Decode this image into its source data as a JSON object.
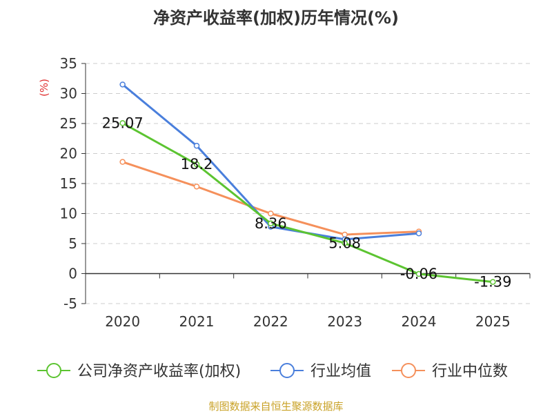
{
  "chart_data": {
    "type": "line",
    "title": "净资产收益率(加权)历年情况(%)",
    "ylabel": "(%)",
    "xlabel": "",
    "ylim": [
      -5,
      35
    ],
    "yticks": [
      -5,
      0,
      5,
      10,
      15,
      20,
      25,
      30,
      35
    ],
    "categories": [
      "2020",
      "2021",
      "2022",
      "2023",
      "2024",
      "2025"
    ],
    "grid": true,
    "legend_position": "bottom",
    "series": [
      {
        "name": "公司净资产收益率(加权)",
        "color": "#5cc431",
        "values": [
          25.07,
          18.2,
          8.36,
          5.08,
          -0.06,
          -1.39
        ],
        "labels": [
          "25.07",
          "18.2",
          "8.36",
          "5.08",
          "-0.06",
          "-1.39"
        ]
      },
      {
        "name": "行业均值",
        "color": "#4a7fdc",
        "values": [
          31.5,
          21.3,
          7.8,
          5.7,
          6.7,
          null
        ]
      },
      {
        "name": "行业中位数",
        "color": "#f5905b",
        "values": [
          18.6,
          14.5,
          10.0,
          6.5,
          7.0,
          null
        ]
      }
    ]
  },
  "footer": "制图数据来自恒生聚源数据库"
}
